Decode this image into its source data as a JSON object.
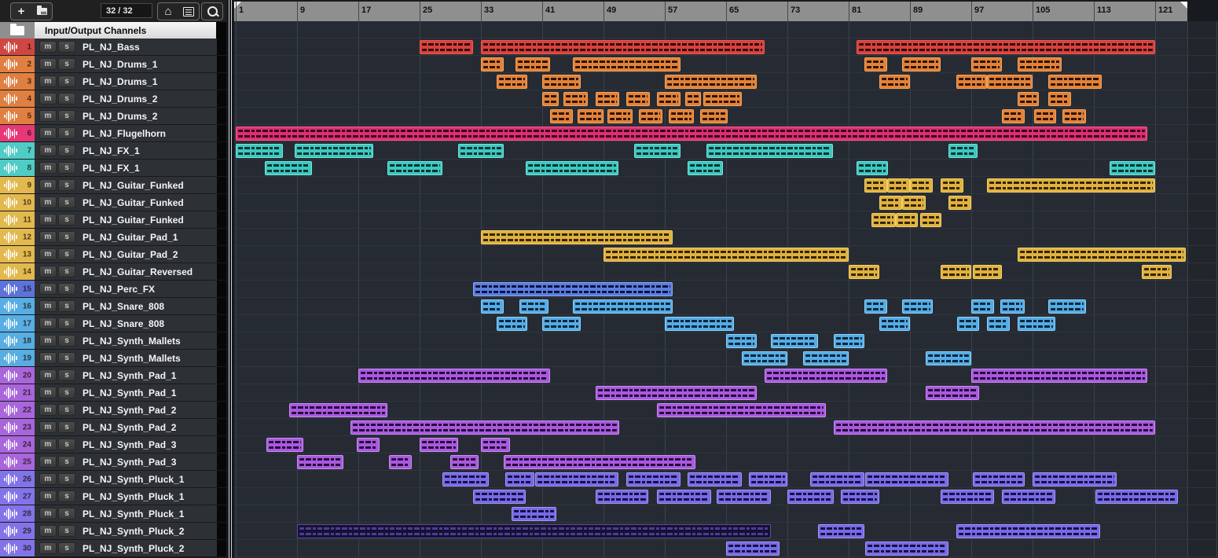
{
  "toolbar": {
    "add_label": "+",
    "counter": "32 / 32"
  },
  "list_header": {
    "title": "Input/Output Channels"
  },
  "track_buttons": {
    "mute": "m",
    "solo": "s"
  },
  "ruler": {
    "labels": [
      1,
      9,
      17,
      25,
      33,
      41,
      49,
      57,
      65,
      73,
      81,
      89,
      97,
      105,
      113,
      121
    ]
  },
  "colors": {
    "red": {
      "stripe": "#d04642",
      "fill": "#d8423d",
      "border": "#f25550",
      "wave": "#2a0a0a"
    },
    "orange": {
      "stripe": "#df7f41",
      "fill": "#e2823a",
      "border": "#f7a257",
      "wave": "#2a1404"
    },
    "pink": {
      "stripe": "#e63877",
      "fill": "#dd2f73",
      "border": "#ff5c9b",
      "wave": "#33081a"
    },
    "teal": {
      "stripe": "#4fccc5",
      "fill": "#3ec7bf",
      "border": "#72e4dc",
      "wave": "#063230"
    },
    "yellow": {
      "stripe": "#e2b94e",
      "fill": "#dfb13f",
      "border": "#f4d06b",
      "wave": "#322405"
    },
    "periwinkle": {
      "stripe": "#5d73da",
      "fill": "#5b7ddf",
      "border": "#8aa6f2",
      "wave": "#0a1438"
    },
    "lightblue": {
      "stripe": "#58aee2",
      "fill": "#55abe5",
      "border": "#8fd0f7",
      "wave": "#082639"
    },
    "purple": {
      "stripe": "#a965da",
      "fill": "#a959de",
      "border": "#c98ef2",
      "wave": "#230a38"
    },
    "violet": {
      "stripe": "#8274e8",
      "fill": "#776ae6",
      "border": "#a297f4",
      "wave": "#161040"
    },
    "dark": {
      "stripe": "#8274e8",
      "fill": "#171031",
      "border": "#5a4da0",
      "wave": "#4b3d94"
    }
  },
  "tracks": [
    {
      "num": 1,
      "name": "PL_NJ_Bass",
      "color": "red"
    },
    {
      "num": 2,
      "name": "PL_NJ_Drums_1",
      "color": "orange"
    },
    {
      "num": 3,
      "name": "PL_NJ_Drums_1",
      "color": "orange"
    },
    {
      "num": 4,
      "name": "PL_NJ_Drums_2",
      "color": "orange"
    },
    {
      "num": 5,
      "name": "PL_NJ_Drums_2",
      "color": "orange"
    },
    {
      "num": 6,
      "name": "PL_NJ_Flugelhorn",
      "color": "pink"
    },
    {
      "num": 7,
      "name": "PL_NJ_FX_1",
      "color": "teal"
    },
    {
      "num": 8,
      "name": "PL_NJ_FX_1",
      "color": "teal"
    },
    {
      "num": 9,
      "name": "PL_NJ_Guitar_Funked",
      "color": "yellow"
    },
    {
      "num": 10,
      "name": "PL_NJ_Guitar_Funked",
      "color": "yellow"
    },
    {
      "num": 11,
      "name": "PL_NJ_Guitar_Funked",
      "color": "yellow"
    },
    {
      "num": 12,
      "name": "PL_NJ_Guitar_Pad_1",
      "color": "yellow"
    },
    {
      "num": 13,
      "name": "PL_NJ_Guitar_Pad_2",
      "color": "yellow"
    },
    {
      "num": 14,
      "name": "PL_NJ_Guitar_Reversed",
      "color": "yellow"
    },
    {
      "num": 15,
      "name": "PL_NJ_Perc_FX",
      "color": "periwinkle"
    },
    {
      "num": 16,
      "name": "PL_NJ_Snare_808",
      "color": "lightblue"
    },
    {
      "num": 17,
      "name": "PL_NJ_Snare_808",
      "color": "lightblue"
    },
    {
      "num": 18,
      "name": "PL_NJ_Synth_Mallets",
      "color": "lightblue"
    },
    {
      "num": 19,
      "name": "PL_NJ_Synth_Mallets",
      "color": "lightblue"
    },
    {
      "num": 20,
      "name": "PL_NJ_Synth_Pad_1",
      "color": "purple"
    },
    {
      "num": 21,
      "name": "PL_NJ_Synth_Pad_1",
      "color": "purple"
    },
    {
      "num": 22,
      "name": "PL_NJ_Synth_Pad_2",
      "color": "purple"
    },
    {
      "num": 23,
      "name": "PL_NJ_Synth_Pad_2",
      "color": "purple"
    },
    {
      "num": 24,
      "name": "PL_NJ_Synth_Pad_3",
      "color": "purple"
    },
    {
      "num": 25,
      "name": "PL_NJ_Synth_Pad_3",
      "color": "purple"
    },
    {
      "num": 26,
      "name": "PL_NJ_Synth_Pluck_1",
      "color": "violet"
    },
    {
      "num": 27,
      "name": "PL_NJ_Synth_Pluck_1",
      "color": "violet"
    },
    {
      "num": 28,
      "name": "PL_NJ_Synth_Pluck_1",
      "color": "violet"
    },
    {
      "num": 29,
      "name": "PL_NJ_Synth_Pluck_2",
      "color": "violet"
    },
    {
      "num": 30,
      "name": "PL_NJ_Synth_Pluck_2",
      "color": "violet"
    }
  ],
  "clips": [
    [
      1,
      25,
      32
    ],
    [
      1,
      33,
      70
    ],
    [
      1,
      82,
      121
    ],
    [
      2,
      33,
      36
    ],
    [
      2,
      37.5,
      42
    ],
    [
      2,
      45,
      59
    ],
    [
      2,
      83,
      86
    ],
    [
      2,
      88,
      93
    ],
    [
      2,
      97,
      101
    ],
    [
      2,
      103,
      108.8
    ],
    [
      3,
      35,
      39
    ],
    [
      3,
      41,
      46
    ],
    [
      3,
      57,
      69
    ],
    [
      3,
      85,
      89
    ],
    [
      3,
      95,
      99
    ],
    [
      3,
      99,
      105
    ],
    [
      3,
      107,
      114
    ],
    [
      4,
      41,
      43.2
    ],
    [
      4,
      43.8,
      47
    ],
    [
      4,
      48,
      51
    ],
    [
      4,
      52,
      55
    ],
    [
      4,
      56,
      59
    ],
    [
      4,
      59.7,
      61.7
    ],
    [
      4,
      62,
      67
    ],
    [
      4,
      103,
      105.8
    ],
    [
      4,
      107,
      110
    ],
    [
      5,
      42,
      45
    ],
    [
      5,
      45.6,
      49
    ],
    [
      5,
      49.5,
      52.8
    ],
    [
      5,
      53.6,
      56.7
    ],
    [
      5,
      57.5,
      60.8
    ],
    [
      5,
      61.6,
      65.2
    ],
    [
      5,
      101,
      104
    ],
    [
      5,
      105.2,
      108.1
    ],
    [
      5,
      108.9,
      112
    ],
    [
      6,
      1,
      120
    ],
    [
      7,
      1,
      7.2
    ],
    [
      7,
      8.7,
      19
    ],
    [
      7,
      30,
      36
    ],
    [
      7,
      53,
      59
    ],
    [
      7,
      62.4,
      79
    ],
    [
      7,
      94,
      97.8
    ],
    [
      8,
      4.8,
      11
    ],
    [
      8,
      20.8,
      28
    ],
    [
      8,
      38.8,
      51
    ],
    [
      8,
      60,
      64.6
    ],
    [
      8,
      82,
      86.1
    ],
    [
      8,
      115,
      121
    ],
    [
      9,
      83,
      86
    ],
    [
      9,
      86,
      89
    ],
    [
      9,
      89,
      92
    ],
    [
      9,
      93,
      96
    ],
    [
      9,
      99,
      121
    ],
    [
      10,
      85,
      88
    ],
    [
      10,
      88,
      91
    ],
    [
      10,
      94,
      97
    ],
    [
      11,
      84,
      87.2
    ],
    [
      11,
      87.2,
      90
    ],
    [
      11,
      90.3,
      93.1
    ],
    [
      12,
      33,
      58
    ],
    [
      13,
      49,
      81
    ],
    [
      13,
      103,
      125
    ],
    [
      14,
      81,
      85
    ],
    [
      14,
      93,
      97
    ],
    [
      14,
      97.2,
      101
    ],
    [
      14,
      119.3,
      123.2
    ],
    [
      15,
      32,
      58
    ],
    [
      16,
      33,
      36
    ],
    [
      16,
      38,
      41.8
    ],
    [
      16,
      45,
      58
    ],
    [
      16,
      83,
      86
    ],
    [
      16,
      88,
      92
    ],
    [
      16,
      97,
      100
    ],
    [
      16,
      100.8,
      104
    ],
    [
      16,
      107,
      112
    ],
    [
      17,
      35,
      39
    ],
    [
      17,
      41,
      46
    ],
    [
      17,
      57,
      66
    ],
    [
      17,
      85,
      89
    ],
    [
      17,
      95.2,
      98
    ],
    [
      17,
      99,
      102
    ],
    [
      17,
      103,
      108
    ],
    [
      18,
      65,
      69
    ],
    [
      18,
      70.8,
      77
    ],
    [
      18,
      79,
      83
    ],
    [
      19,
      67,
      73
    ],
    [
      19,
      75,
      81
    ],
    [
      19,
      91,
      97
    ],
    [
      20,
      17,
      42
    ],
    [
      20,
      70,
      86
    ],
    [
      20,
      97,
      120
    ],
    [
      21,
      48,
      69
    ],
    [
      21,
      91,
      98
    ],
    [
      22,
      8,
      20.8
    ],
    [
      22,
      56,
      78
    ],
    [
      23,
      16,
      51
    ],
    [
      23,
      79,
      121
    ],
    [
      24,
      5,
      9.8
    ],
    [
      24,
      16.8,
      19.8
    ],
    [
      24,
      25,
      30
    ],
    [
      24,
      33,
      36.8
    ],
    [
      25,
      9,
      15
    ],
    [
      25,
      21,
      24
    ],
    [
      25,
      29,
      32.7
    ],
    [
      25,
      36,
      61
    ],
    [
      26,
      28,
      34
    ],
    [
      26,
      36.2,
      40
    ],
    [
      26,
      40.1,
      51
    ],
    [
      26,
      52,
      59
    ],
    [
      26,
      60,
      67
    ],
    [
      26,
      68,
      73
    ],
    [
      26,
      76,
      83
    ],
    [
      26,
      83.2,
      94
    ],
    [
      26,
      97.2,
      104
    ],
    [
      26,
      105,
      116
    ],
    [
      27,
      32,
      38.8
    ],
    [
      27,
      48,
      54.8
    ],
    [
      27,
      56,
      63
    ],
    [
      27,
      63.8,
      70.8
    ],
    [
      27,
      73,
      79
    ],
    [
      27,
      80,
      85
    ],
    [
      27,
      93,
      100
    ],
    [
      27,
      101,
      108
    ],
    [
      27,
      113.2,
      124
    ],
    [
      28,
      37,
      42.8
    ],
    [
      29,
      9,
      70.8,
      "dark"
    ],
    [
      29,
      77,
      83
    ],
    [
      29,
      95,
      113.8
    ],
    [
      30,
      65,
      72
    ],
    [
      30,
      83.2,
      94
    ]
  ]
}
